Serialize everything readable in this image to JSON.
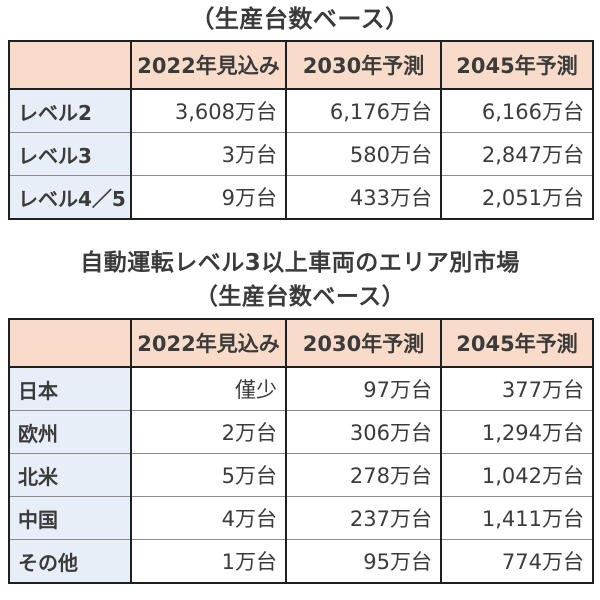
{
  "colors": {
    "header_bg": "#f8dcc9",
    "row_label_bg": "#e7eef7",
    "border_dark": "#1f1f1f",
    "row_separator": "#8c8c8c",
    "text": "#3b3b3b",
    "page_bg": "#ffffff"
  },
  "top_title": "（生産台数ベース）",
  "section_heading": {
    "line1": "自動運転レベル3以上車両のエリア別市場",
    "line2": "（生産台数ベース）"
  },
  "tables": [
    {
      "columns": [
        "",
        "2022年見込み",
        "2030年予測",
        "2045年予測"
      ],
      "rows": [
        {
          "label": "レベル2",
          "values": [
            "3,608万台",
            "6,176万台",
            "6,166万台"
          ]
        },
        {
          "label": "レベル3",
          "values": [
            "3万台",
            "580万台",
            "2,847万台"
          ]
        },
        {
          "label": "レベル4／5",
          "values": [
            "9万台",
            "433万台",
            "2,051万台"
          ]
        }
      ]
    },
    {
      "columns": [
        "",
        "2022年見込み",
        "2030年予測",
        "2045年予測"
      ],
      "rows": [
        {
          "label": "日本",
          "values": [
            "僅少",
            "97万台",
            "377万台"
          ]
        },
        {
          "label": "欧州",
          "values": [
            "2万台",
            "306万台",
            "1,294万台"
          ]
        },
        {
          "label": "北米",
          "values": [
            "5万台",
            "278万台",
            "1,042万台"
          ]
        },
        {
          "label": "中国",
          "values": [
            "4万台",
            "237万台",
            "1,411万台"
          ]
        },
        {
          "label": "その他",
          "values": [
            "1万台",
            "95万台",
            "774万台"
          ]
        }
      ]
    }
  ]
}
